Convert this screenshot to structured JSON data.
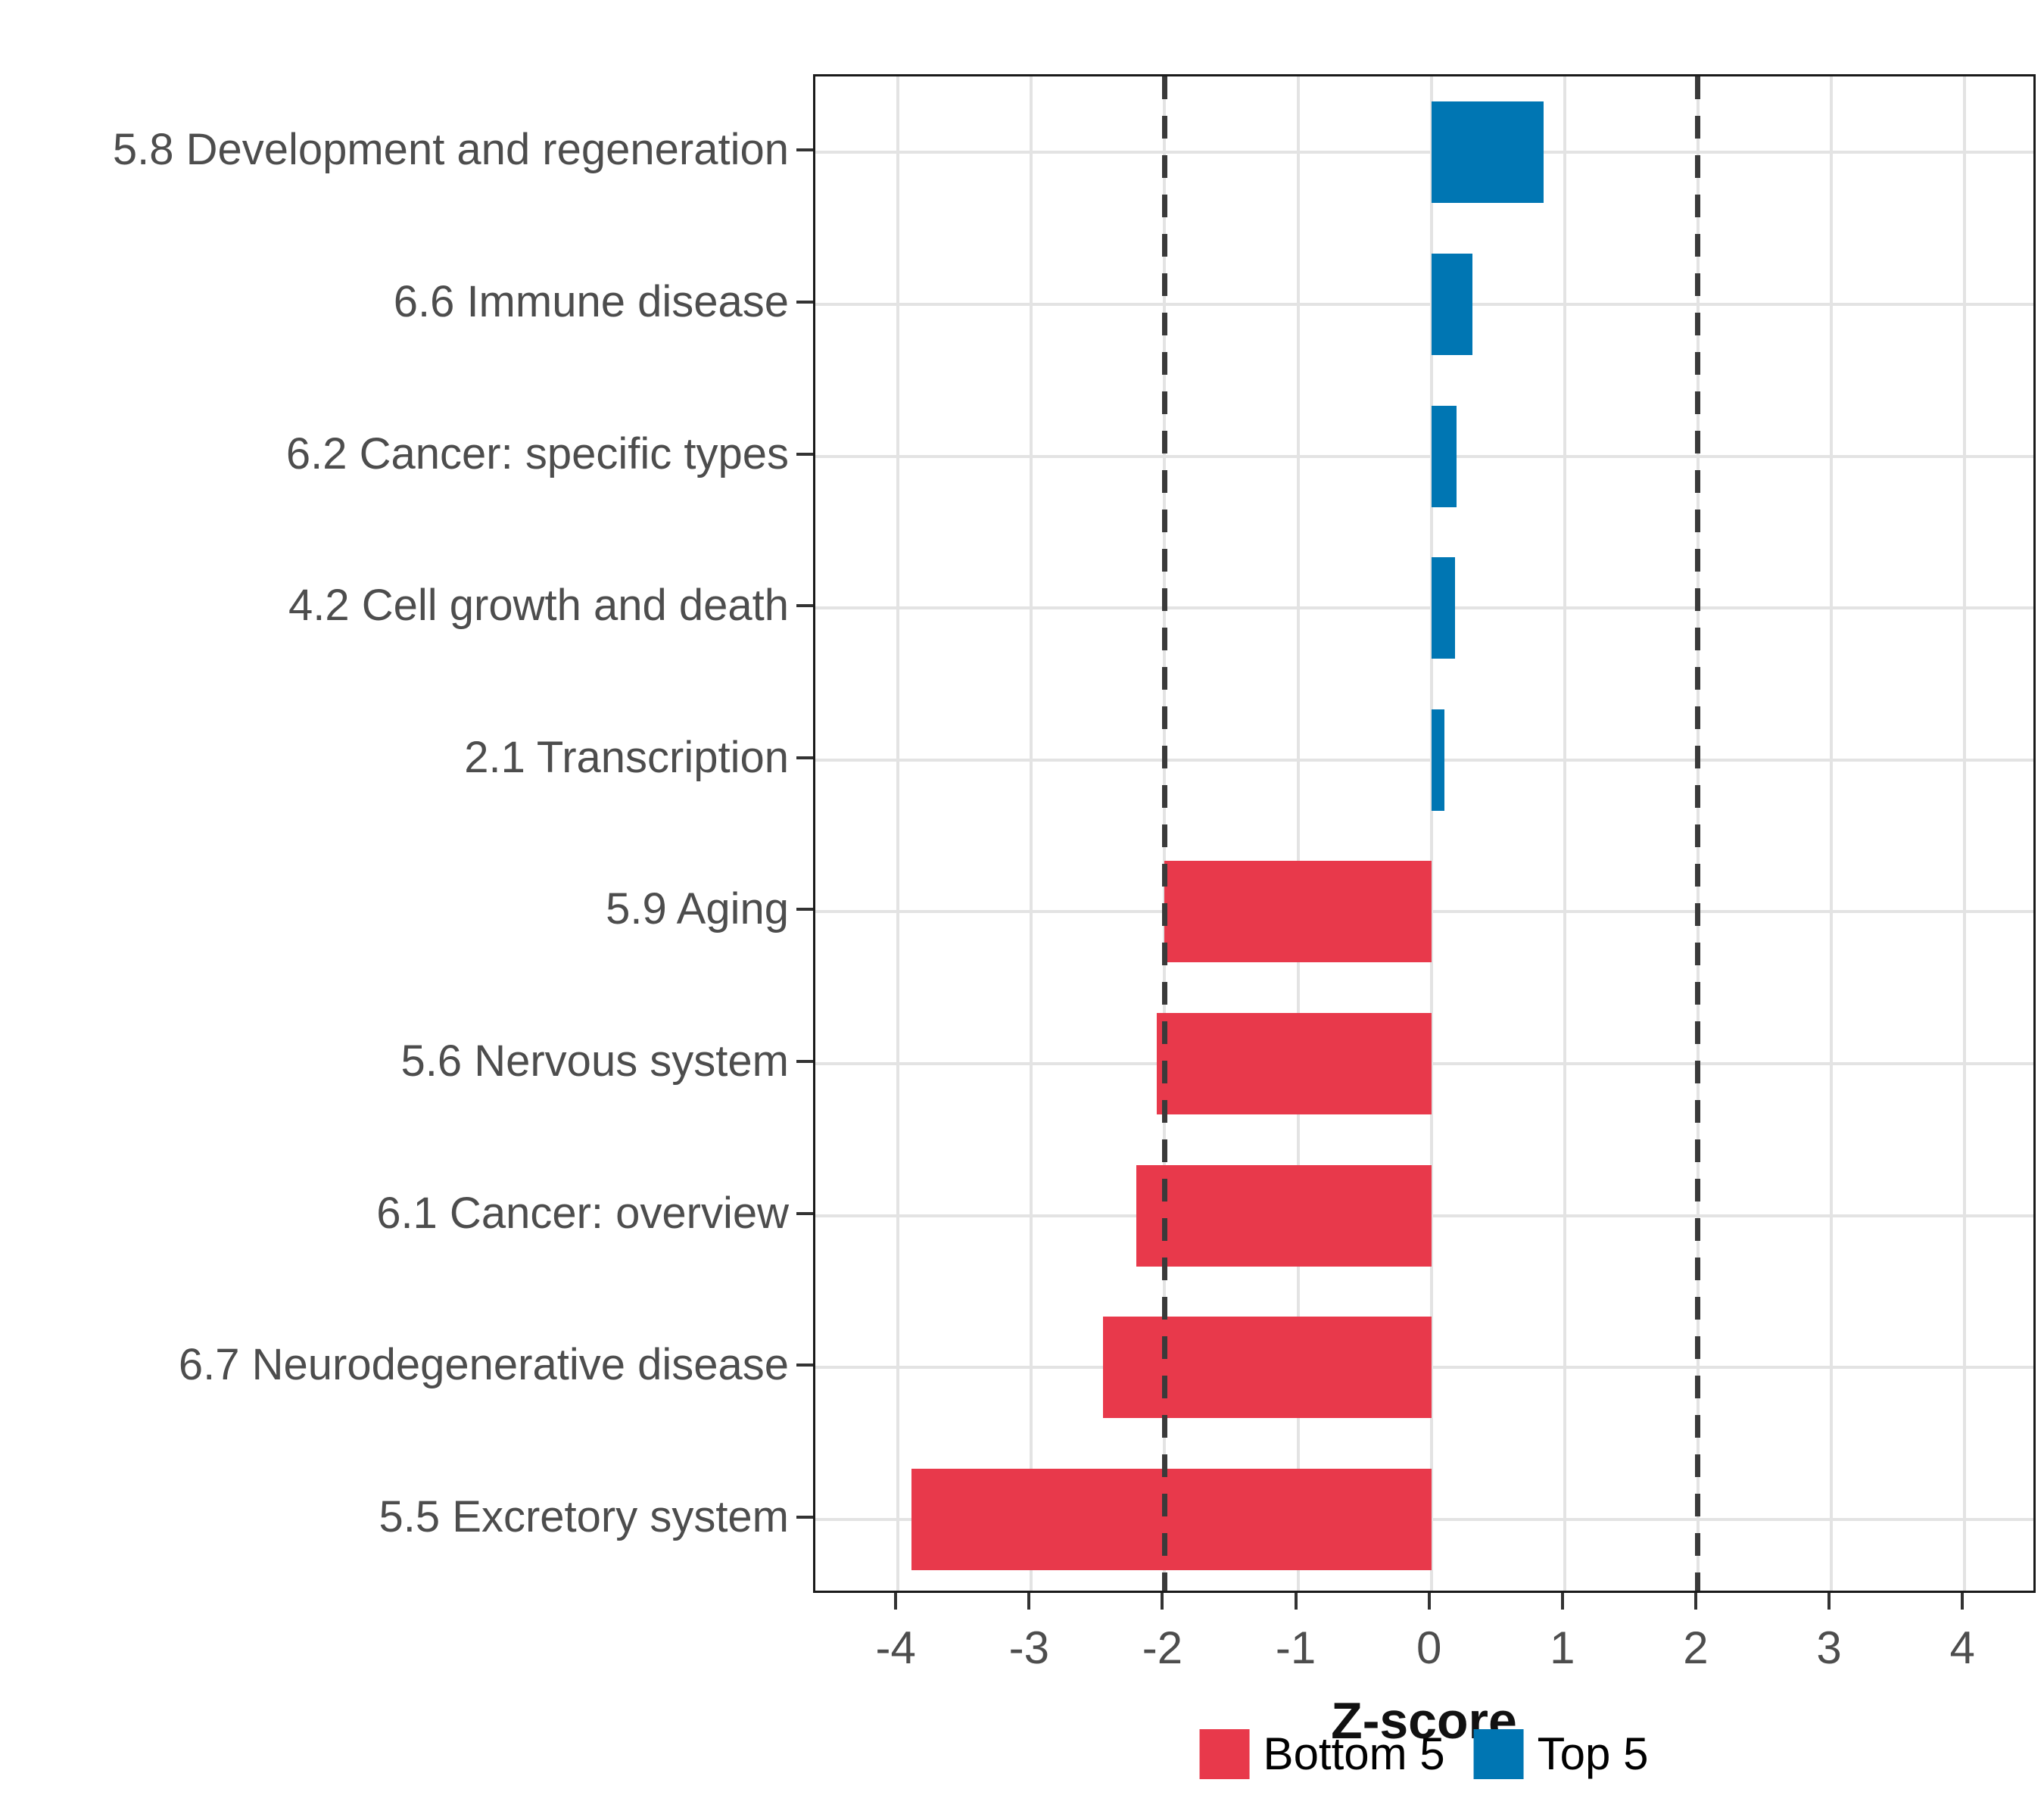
{
  "chart_data": {
    "type": "bar",
    "orientation": "horizontal",
    "title": "",
    "xlabel": "Z-score",
    "ylabel": "",
    "categories": [
      "5.8 Development and regeneration",
      "6.6 Immune disease",
      "6.2 Cancer: specific types",
      "4.2 Cell growth and death",
      "2.1 Transcription",
      "5.9 Aging",
      "5.6 Nervous system",
      "6.1 Cancer: overview",
      "6.7 Neurodegenerative disease",
      "5.5 Excretory system"
    ],
    "values": [
      0.84,
      0.31,
      0.19,
      0.18,
      0.1,
      -2.0,
      -2.06,
      -2.21,
      -2.46,
      -3.9
    ],
    "groups": [
      "Top 5",
      "Top 5",
      "Top 5",
      "Top 5",
      "Top 5",
      "Bottom 5",
      "Bottom 5",
      "Bottom 5",
      "Bottom 5",
      "Bottom 5"
    ],
    "group_colors": {
      "Bottom 5": "#e8394b",
      "Top 5": "#0076b3"
    },
    "x_ticks": [
      -4,
      -3,
      -2,
      -1,
      0,
      1,
      2,
      3,
      4
    ],
    "xlim": [
      -4.62,
      4.55
    ],
    "reference_lines": [
      -2,
      2
    ],
    "grid": "major gridlines at integer x and at each category row",
    "legend": {
      "position": "bottom-center",
      "entries": [
        {
          "label": "Bottom 5",
          "color": "#e8394b"
        },
        {
          "label": "Top 5",
          "color": "#0076b3"
        }
      ]
    }
  },
  "colors": {
    "bar_red": "#e8394b",
    "bar_blue": "#0076b3",
    "gridline": "#e3e3e3",
    "axis_text": "#4d4d4d",
    "reference_line": "#3a3a3a",
    "panel_border": "#1a1a1a",
    "background": "#ffffff",
    "legend_text": "#000000"
  }
}
